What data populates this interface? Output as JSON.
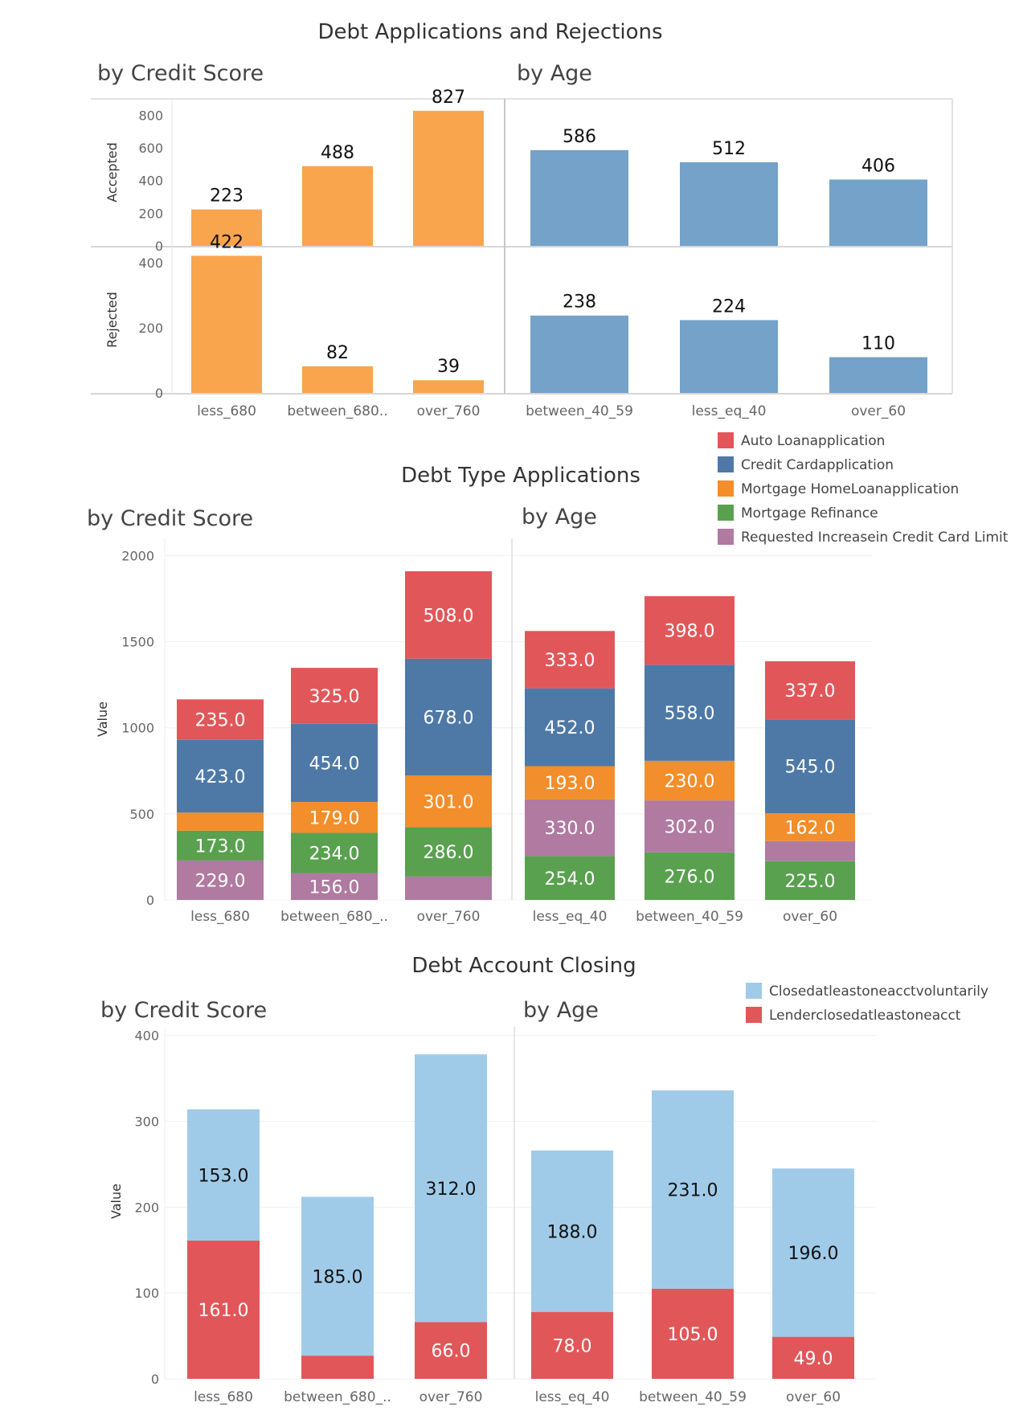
{
  "chart_data": [
    {
      "id": "apps-credit",
      "type": "bar",
      "title": "Debt Applications and Rejections",
      "subtitle": "by Credit Score",
      "categories": [
        "less_680",
        "between_680..",
        "over_760"
      ],
      "series": [
        {
          "name": "Accepted",
          "values": [
            223,
            488,
            827
          ],
          "color": "#F8A54E"
        },
        {
          "name": "Rejected",
          "values": [
            422,
            82,
            39
          ],
          "color": "#F8A54E"
        }
      ],
      "rows": [
        {
          "label": "Accepted",
          "ylim": [
            0,
            900
          ],
          "ticks": [
            "800",
            "600",
            "400",
            "200",
            "0"
          ],
          "tick_values": [
            800,
            600,
            400,
            200,
            0
          ]
        },
        {
          "label": "Rejected",
          "ylim": [
            0,
            450
          ],
          "ticks": [
            "400",
            "200",
            "0"
          ],
          "tick_values": [
            400,
            200,
            0
          ]
        }
      ]
    },
    {
      "id": "apps-age",
      "type": "bar",
      "subtitle": "by Age",
      "categories": [
        "between_40_59",
        "less_eq_40",
        "over_60"
      ],
      "series": [
        {
          "name": "Accepted",
          "values": [
            586,
            512,
            406
          ],
          "color": "#74A2C8"
        },
        {
          "name": "Rejected",
          "values": [
            238,
            224,
            110
          ],
          "color": "#74A2C8"
        }
      ]
    },
    {
      "id": "type-credit",
      "type": "bar",
      "title": "Debt Type Applications",
      "subtitle": "by Credit Score",
      "ylabel": "Value",
      "ylim": [
        0,
        2100
      ],
      "ticks": [
        "2000",
        "1500",
        "1000",
        "500",
        "0"
      ],
      "tick_values": [
        2000,
        1500,
        1000,
        500,
        0
      ],
      "categories": [
        "less_680",
        "between_680_..",
        "over_760"
      ],
      "stack_order": [
        "Requested Increasein Credit Card Limit",
        "Mortgage Refinance",
        "Mortgage HomeLoanapplication",
        "Credit Cardapplication",
        "Auto Loanapplication"
      ],
      "series": [
        {
          "name": "Requested Increasein Credit Card Limit",
          "values": [
            229,
            156,
            136
          ],
          "labels": [
            "229.0",
            "156.0",
            ""
          ]
        },
        {
          "name": "Mortgage Refinance",
          "values": [
            173,
            234,
            286
          ],
          "labels": [
            "173.0",
            "234.0",
            "286.0"
          ]
        },
        {
          "name": "Mortgage HomeLoanapplication",
          "values": [
            105,
            179,
            301
          ],
          "labels": [
            "",
            "179.0",
            "301.0"
          ]
        },
        {
          "name": "Credit Cardapplication",
          "values": [
            423,
            454,
            678
          ],
          "labels": [
            "423.0",
            "454.0",
            "678.0"
          ]
        },
        {
          "name": "Auto Loanapplication",
          "values": [
            235,
            325,
            508
          ],
          "labels": [
            "235.0",
            "325.0",
            "508.0"
          ]
        }
      ]
    },
    {
      "id": "type-age",
      "type": "bar",
      "subtitle": "by Age",
      "categories": [
        "less_eq_40",
        "between_40_59",
        "over_60"
      ],
      "stack_order": [
        "Mortgage Refinance",
        "Requested Increasein Credit Card Limit",
        "Mortgage HomeLoanapplication",
        "Credit Cardapplication",
        "Auto Loanapplication"
      ],
      "series": [
        {
          "name": "Mortgage Refinance",
          "values": [
            254,
            276,
            225
          ],
          "labels": [
            "254.0",
            "276.0",
            "225.0"
          ]
        },
        {
          "name": "Requested Increasein Credit Card Limit",
          "values": [
            330,
            302,
            117
          ],
          "labels": [
            "330.0",
            "302.0",
            ""
          ]
        },
        {
          "name": "Mortgage HomeLoanapplication",
          "values": [
            193,
            230,
            162
          ],
          "labels": [
            "193.0",
            "230.0",
            "162.0"
          ]
        },
        {
          "name": "Credit Cardapplication",
          "values": [
            452,
            558,
            545
          ],
          "labels": [
            "452.0",
            "558.0",
            "545.0"
          ]
        },
        {
          "name": "Auto Loanapplication",
          "values": [
            333,
            398,
            337
          ],
          "labels": [
            "333.0",
            "398.0",
            "337.0"
          ]
        }
      ]
    },
    {
      "id": "close-credit",
      "type": "bar",
      "title": "Debt Account Closing",
      "subtitle": "by Credit Score",
      "ylabel": "Value",
      "ylim": [
        0,
        410
      ],
      "ticks": [
        "400",
        "300",
        "200",
        "100",
        "0"
      ],
      "tick_values": [
        400,
        300,
        200,
        100,
        0
      ],
      "categories": [
        "less_680",
        "between_680_..",
        "over_760"
      ],
      "stack_order": [
        "Lenderclosedatleastoneacct",
        "Closedatleastoneacctvoluntarily"
      ],
      "series": [
        {
          "name": "Lenderclosedatleastoneacct",
          "values": [
            161,
            27,
            66
          ],
          "labels": [
            "161.0",
            "",
            "66.0"
          ]
        },
        {
          "name": "Closedatleastoneacctvoluntarily",
          "values": [
            153,
            185,
            312
          ],
          "labels": [
            "153.0",
            "185.0",
            "312.0"
          ]
        }
      ]
    },
    {
      "id": "close-age",
      "type": "bar",
      "subtitle": "by Age",
      "categories": [
        "less_eq_40",
        "between_40_59",
        "over_60"
      ],
      "stack_order": [
        "Lenderclosedatleastoneacct",
        "Closedatleastoneacctvoluntarily"
      ],
      "series": [
        {
          "name": "Lenderclosedatleastoneacct",
          "values": [
            78,
            105,
            49
          ],
          "labels": [
            "78.0",
            "105.0",
            "49.0"
          ]
        },
        {
          "name": "Closedatleastoneacctvoluntarily",
          "values": [
            188,
            231,
            196
          ],
          "labels": [
            "188.0",
            "231.0",
            "196.0"
          ]
        }
      ]
    }
  ],
  "legends": {
    "debt_type": [
      {
        "name": "Auto Loanapplication",
        "color": "#E15759"
      },
      {
        "name": "Credit Cardapplication",
        "color": "#4E79A7"
      },
      {
        "name": "Mortgage HomeLoanapplication",
        "color": "#F28E2B"
      },
      {
        "name": "Mortgage Refinance",
        "color": "#59A14F"
      },
      {
        "name": "Requested Increasein Credit Card Limit",
        "color": "#B07AA1"
      }
    ],
    "closing": [
      {
        "name": "Closedatleastoneacctvoluntarily",
        "color": "#A0CBE8"
      },
      {
        "name": "Lenderclosedatleastoneacct",
        "color": "#E15759"
      }
    ]
  }
}
